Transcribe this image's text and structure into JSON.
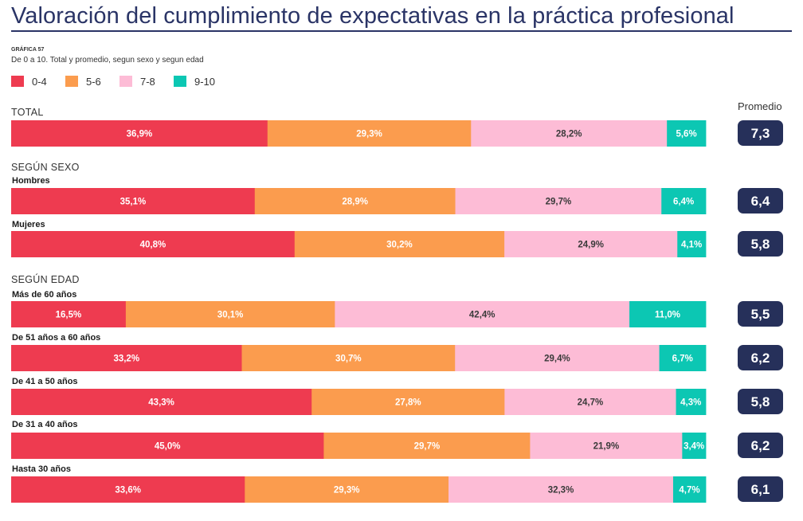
{
  "header": {
    "title": "Valoración del cumplimiento de expectativas en la práctica profesional",
    "figure_label": "GRÁFICA 57",
    "subtitle": "De 0 a 10. Total y promedio, segun sexo y segun edad",
    "average_header": "Promedio"
  },
  "colors": {
    "0-4": "#ee3b50",
    "5-6": "#fb9c4e",
    "7-8": "#fdbcd6",
    "9-10": "#0cc7b3",
    "badge": "#26305a",
    "title": "#2a3466"
  },
  "chart_data": {
    "type": "bar",
    "orientation": "horizontal",
    "stacked": true,
    "unit": "%",
    "categories_legend": [
      "0-4",
      "5-6",
      "7-8",
      "9-10"
    ],
    "groups": [
      {
        "label": "TOTAL",
        "rows": [
          {
            "label": "",
            "values": [
              "36,9%",
              "29,3%",
              "28,2%",
              "5,6%"
            ],
            "average": "7,3"
          }
        ]
      },
      {
        "label": "SEGÚN SEXO",
        "rows": [
          {
            "label": "Hombres",
            "values": [
              "35,1%",
              "28,9%",
              "29,7%",
              "6,4%"
            ],
            "average": "6,4"
          },
          {
            "label": "Mujeres",
            "values": [
              "40,8%",
              "30,2%",
              "24,9%",
              "4,1%"
            ],
            "average": "5,8"
          }
        ]
      },
      {
        "label": "SEGÚN EDAD",
        "rows": [
          {
            "label": "Más de 60 años",
            "values": [
              "16,5%",
              "30,1%",
              "42,4%",
              "11,0%"
            ],
            "average": "5,5"
          },
          {
            "label": "De 51 años a 60 años",
            "values": [
              "33,2%",
              "30,7%",
              "29,4%",
              "6,7%"
            ],
            "average": "6,2"
          },
          {
            "label": "De 41 a 50 años",
            "values": [
              "43,3%",
              "27,8%",
              "24,7%",
              "4,3%"
            ],
            "average": "5,8"
          },
          {
            "label": "De 31 a 40 años",
            "values": [
              "45,0%",
              "29,7%",
              "21,9%",
              "3,4%"
            ],
            "average": "6,2"
          },
          {
            "label": "Hasta 30 años",
            "values": [
              "33,6%",
              "29,3%",
              "32,3%",
              "4,7%"
            ],
            "average": "6,1"
          }
        ]
      }
    ]
  }
}
